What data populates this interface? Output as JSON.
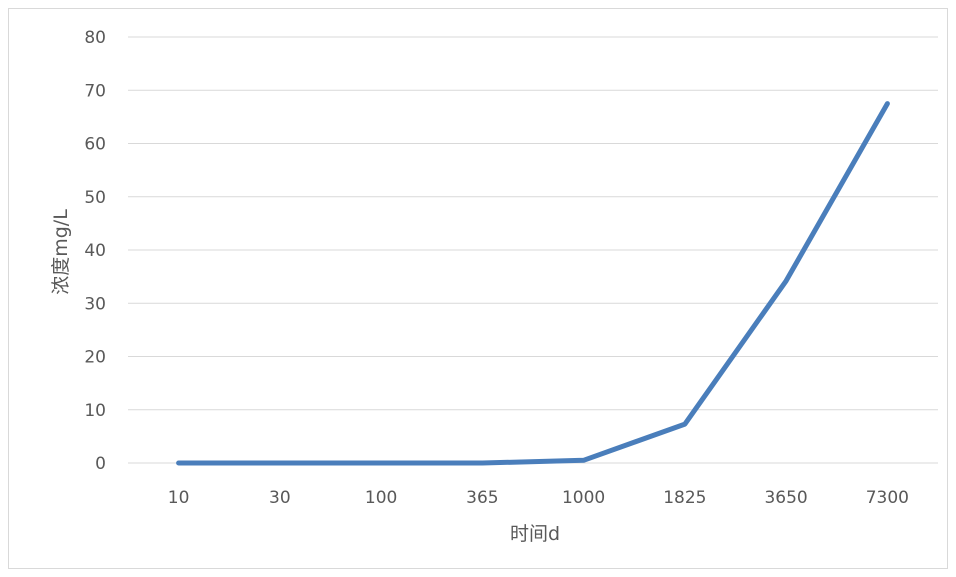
{
  "chart_data": {
    "type": "line",
    "title": "",
    "xlabel": "时间d",
    "ylabel": "浓度mg/L",
    "categories": [
      "10",
      "30",
      "100",
      "365",
      "1000",
      "1825",
      "3650",
      "7300"
    ],
    "series": [
      {
        "values": [
          0,
          0,
          0,
          0,
          0.5,
          7.3,
          34.2,
          67.5
        ]
      }
    ],
    "ylim": [
      0,
      80
    ],
    "yticks": [
      0,
      10,
      20,
      30,
      40,
      50,
      60,
      70,
      80
    ],
    "grid": true,
    "legend": "none",
    "colors": {
      "line": "#4a7ebb",
      "grid": "#d9d9d9",
      "text": "#595959"
    }
  }
}
